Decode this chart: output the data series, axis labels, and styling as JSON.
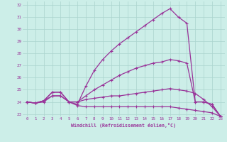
{
  "bg_color": "#cceee8",
  "grid_color": "#aad4ce",
  "line_color": "#993399",
  "marker": "+",
  "xlabel": "Windchill (Refroidissement éolien,°C)",
  "xlim": [
    -0.5,
    23.5
  ],
  "ylim": [
    22.8,
    32.3
  ],
  "yticks": [
    23,
    24,
    25,
    26,
    27,
    28,
    29,
    30,
    31,
    32
  ],
  "xticks": [
    0,
    1,
    2,
    3,
    4,
    5,
    6,
    7,
    8,
    9,
    10,
    11,
    12,
    13,
    14,
    15,
    16,
    17,
    18,
    19,
    20,
    21,
    22,
    23
  ],
  "lines": [
    {
      "x": [
        0,
        1,
        2,
        3,
        4,
        5,
        6,
        7,
        8,
        9,
        10,
        11,
        12,
        13,
        14,
        15,
        16,
        17,
        18,
        19,
        20,
        21,
        22,
        23
      ],
      "y": [
        24.0,
        23.9,
        24.1,
        24.8,
        24.8,
        24.0,
        23.8,
        25.3,
        26.6,
        27.5,
        28.2,
        28.8,
        29.3,
        29.8,
        30.3,
        30.8,
        31.3,
        31.7,
        31.0,
        30.5,
        24.0,
        24.0,
        23.8,
        22.8
      ]
    },
    {
      "x": [
        0,
        1,
        2,
        3,
        4,
        5,
        6,
        7,
        8,
        9,
        10,
        11,
        12,
        13,
        14,
        15,
        16,
        17,
        18,
        19,
        20,
        21,
        22,
        23
      ],
      "y": [
        24.0,
        23.9,
        24.1,
        24.8,
        24.8,
        24.0,
        24.0,
        24.5,
        25.0,
        25.4,
        25.8,
        26.2,
        26.5,
        26.8,
        27.0,
        27.2,
        27.3,
        27.5,
        27.4,
        27.2,
        24.0,
        24.0,
        23.8,
        22.8
      ]
    },
    {
      "x": [
        0,
        1,
        2,
        3,
        4,
        5,
        6,
        7,
        8,
        9,
        10,
        11,
        12,
        13,
        14,
        15,
        16,
        17,
        18,
        19,
        20,
        21,
        22,
        23
      ],
      "y": [
        24.0,
        23.9,
        24.0,
        24.5,
        24.5,
        24.0,
        24.0,
        24.2,
        24.3,
        24.4,
        24.5,
        24.5,
        24.6,
        24.7,
        24.8,
        24.9,
        25.0,
        25.1,
        25.0,
        24.9,
        24.7,
        24.2,
        23.6,
        22.8
      ]
    },
    {
      "x": [
        0,
        1,
        2,
        3,
        4,
        5,
        6,
        7,
        8,
        9,
        10,
        11,
        12,
        13,
        14,
        15,
        16,
        17,
        18,
        19,
        20,
        21,
        22,
        23
      ],
      "y": [
        24.0,
        23.9,
        24.1,
        24.5,
        24.5,
        24.0,
        23.7,
        23.6,
        23.6,
        23.6,
        23.6,
        23.6,
        23.6,
        23.6,
        23.6,
        23.6,
        23.6,
        23.6,
        23.5,
        23.4,
        23.3,
        23.2,
        23.1,
        22.8
      ]
    }
  ]
}
